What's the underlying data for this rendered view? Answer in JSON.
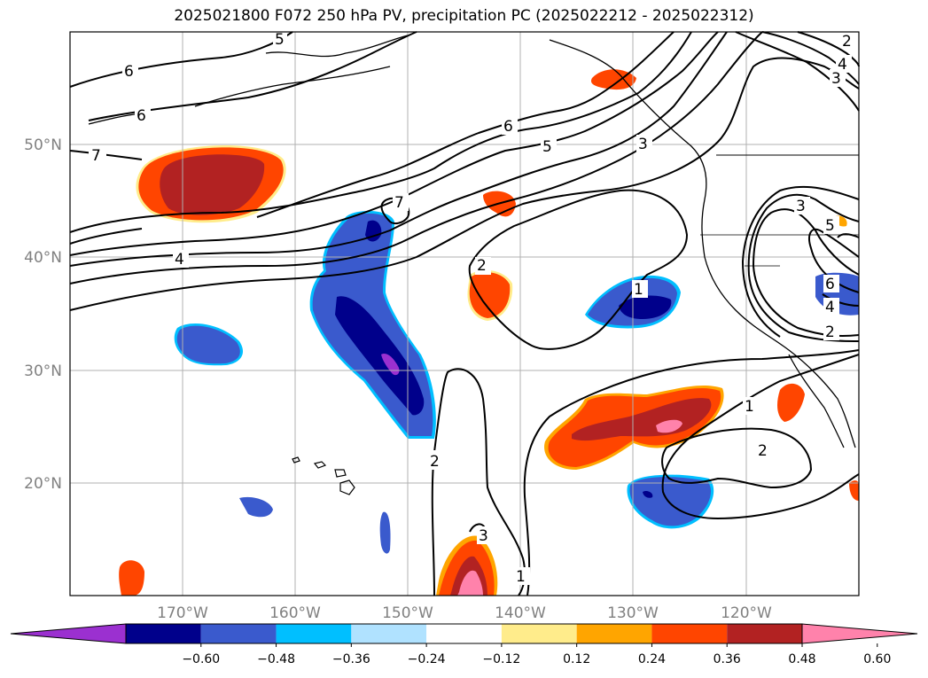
{
  "title": "2025021800 F072 250 hPa PV, precipitation PC (2025022212 - 2025022312)",
  "map": {
    "lon_range": [
      -180,
      -110
    ],
    "lat_range": [
      10,
      60
    ],
    "lon_ticks": [
      {
        "value": -170,
        "label": "170°W"
      },
      {
        "value": -160,
        "label": "160°W"
      },
      {
        "value": -150,
        "label": "150°W"
      },
      {
        "value": -140,
        "label": "140°W"
      },
      {
        "value": -130,
        "label": "130°W"
      },
      {
        "value": -120,
        "label": "120°W"
      }
    ],
    "lat_ticks": [
      {
        "value": 50,
        "label": "50°N"
      },
      {
        "value": 40,
        "label": "40°N"
      },
      {
        "value": 30,
        "label": "30°N"
      },
      {
        "value": 20,
        "label": "20°N"
      }
    ],
    "grid": true,
    "pv_contour_labels": [
      "7",
      "6",
      "6",
      "5",
      "6",
      "5",
      "3",
      "4",
      "3",
      "2",
      "7",
      "4",
      "2",
      "1",
      "2",
      "1",
      "2",
      "1",
      "3",
      "3",
      "5",
      "6",
      "4",
      "2"
    ]
  },
  "colorbar": {
    "colors": [
      "#9b30d0",
      "#00008b",
      "#3a5acd",
      "#00bfff",
      "#b0e2ff",
      "#ffffff",
      "#ffec8b",
      "#ffa500",
      "#ff4500",
      "#b22222",
      "#ff82ab"
    ],
    "tick_labels": [
      "−0.60",
      "−0.48",
      "−0.36",
      "−0.24",
      "−0.12",
      "0.12",
      "0.24",
      "0.36",
      "0.48",
      "0.60"
    ],
    "extend": "both"
  }
}
